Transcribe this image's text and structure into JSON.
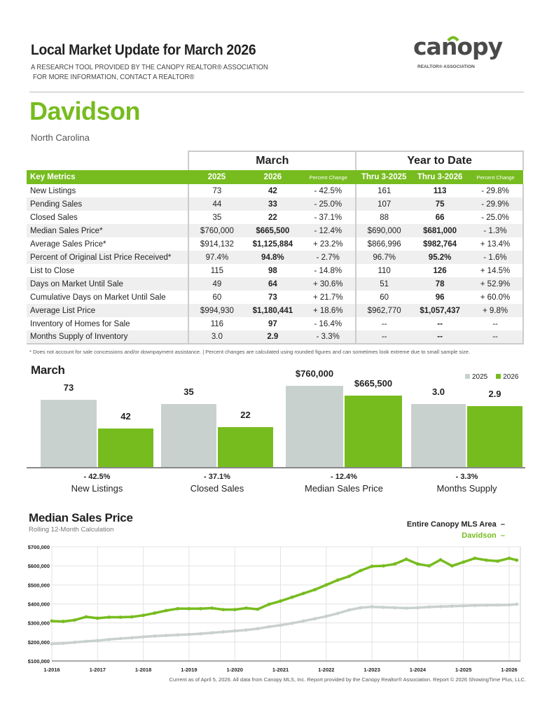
{
  "header": {
    "title": "Local Market Update for March 2026",
    "line1": "A RESEARCH TOOL PROVIDED BY THE CANOPY REALTOR® ASSOCIATION",
    "line2": "FOR MORE INFORMATION, CONTACT A REALTOR®",
    "logo_text": "canopy",
    "logo_sub": "REALTOR® ASSOCIATION"
  },
  "location": {
    "city": "Davidson",
    "state": "North Carolina"
  },
  "table": {
    "group_headers": [
      "March",
      "Year to Date"
    ],
    "columns": [
      "Key Metrics",
      "2025",
      "2026",
      "Percent Change",
      "Thru 3-2025",
      "Thru 3-2026",
      "Percent Change"
    ],
    "rows": [
      [
        "New Listings",
        "73",
        "42",
        "- 42.5%",
        "161",
        "113",
        "- 29.8%"
      ],
      [
        "Pending Sales",
        "44",
        "33",
        "- 25.0%",
        "107",
        "75",
        "- 29.9%"
      ],
      [
        "Closed Sales",
        "35",
        "22",
        "- 37.1%",
        "88",
        "66",
        "- 25.0%"
      ],
      [
        "Median Sales Price*",
        "$760,000",
        "$665,500",
        "- 12.4%",
        "$690,000",
        "$681,000",
        "- 1.3%"
      ],
      [
        "Average Sales Price*",
        "$914,132",
        "$1,125,884",
        "+ 23.2%",
        "$866,996",
        "$982,764",
        "+ 13.4%"
      ],
      [
        "Percent of Original List Price Received*",
        "97.4%",
        "94.8%",
        "- 2.7%",
        "96.7%",
        "95.2%",
        "- 1.6%"
      ],
      [
        "List to Close",
        "115",
        "98",
        "- 14.8%",
        "110",
        "126",
        "+ 14.5%"
      ],
      [
        "Days on Market Until Sale",
        "49",
        "64",
        "+ 30.6%",
        "51",
        "78",
        "+ 52.9%"
      ],
      [
        "Cumulative Days on Market Until Sale",
        "60",
        "73",
        "+ 21.7%",
        "60",
        "96",
        "+ 60.0%"
      ],
      [
        "Average List Price",
        "$994,930",
        "$1,180,441",
        "+ 18.6%",
        "$962,770",
        "$1,057,437",
        "+ 9.8%"
      ],
      [
        "Inventory of Homes for Sale",
        "116",
        "97",
        "- 16.4%",
        "--",
        "--",
        "--"
      ],
      [
        "Months Supply of Inventory",
        "3.0",
        "2.9",
        "- 3.3%",
        "--",
        "--",
        "--"
      ]
    ],
    "footnote": "* Does not account for sale concessions and/or downpayment assistance.  |  Percent changes are calculated using rounded figures and can sometimes look extreme due to small sample size."
  },
  "chart_data": [
    {
      "type": "bar",
      "title": "March",
      "legend": [
        "2025",
        "2026"
      ],
      "colors": {
        "2025": "#c9d1ce",
        "2026": "#77bc1f"
      },
      "categories": [
        "New Listings",
        "Closed Sales",
        "Median Sales Price",
        "Months Supply"
      ],
      "series": [
        {
          "name": "2025",
          "values": [
            73,
            35,
            760000,
            3.0
          ],
          "labels": [
            "73",
            "35",
            "$760,000",
            "3.0"
          ]
        },
        {
          "name": "2026",
          "values": [
            42,
            22,
            665500,
            2.9
          ],
          "labels": [
            "42",
            "22",
            "$665,500",
            "2.9"
          ]
        }
      ],
      "changes": [
        "- 42.5%",
        "- 37.1%",
        "- 12.4%",
        "- 3.3%"
      ]
    },
    {
      "type": "line",
      "title": "Median Sales Price",
      "subtitle": "Rolling 12-Month Calculation",
      "legend": [
        "Entire Canopy MLS Area",
        "Davidson"
      ],
      "legend_placement": "top-right",
      "yticks": [
        "$100,000",
        "$200,000",
        "$300,000",
        "$400,000",
        "$500,000",
        "$600,000",
        "$700,000"
      ],
      "ylim": [
        100000,
        700000
      ],
      "xticks": [
        "1-2016",
        "1-2017",
        "1-2018",
        "1-2019",
        "1-2020",
        "1-2021",
        "1-2022",
        "1-2023",
        "1-2024",
        "1-2025",
        "1-2026"
      ],
      "x_start": "1-2016",
      "x_step_months": 3,
      "series": [
        {
          "name": "Entire Canopy MLS Area",
          "color": "#c9d1ce",
          "values": [
            190000,
            193000,
            198000,
            203000,
            207000,
            213000,
            218000,
            222000,
            227000,
            231000,
            234000,
            237000,
            240000,
            243000,
            248000,
            253000,
            258000,
            263000,
            270000,
            280000,
            288000,
            298000,
            310000,
            322000,
            335000,
            350000,
            368000,
            380000,
            385000,
            382000,
            380000,
            378000,
            380000,
            384000,
            386000,
            388000,
            390000,
            392000,
            393000,
            394000,
            395000,
            398000
          ]
        },
        {
          "name": "Davidson",
          "color": "#77bc1f",
          "values": [
            310000,
            308000,
            315000,
            332000,
            325000,
            330000,
            330000,
            332000,
            340000,
            352000,
            365000,
            375000,
            375000,
            375000,
            378000,
            370000,
            370000,
            378000,
            372000,
            398000,
            415000,
            435000,
            455000,
            475000,
            500000,
            525000,
            545000,
            575000,
            598000,
            600000,
            610000,
            635000,
            610000,
            600000,
            632000,
            600000,
            620000,
            640000,
            630000,
            625000,
            640000,
            630000
          ]
        }
      ]
    }
  ],
  "footer": "Current as of April 5, 2026. All data from Canopy MLS, Inc. Report provided by the Canopy Realtor® Association. Report © 2026 ShowingTime Plus, LLC."
}
